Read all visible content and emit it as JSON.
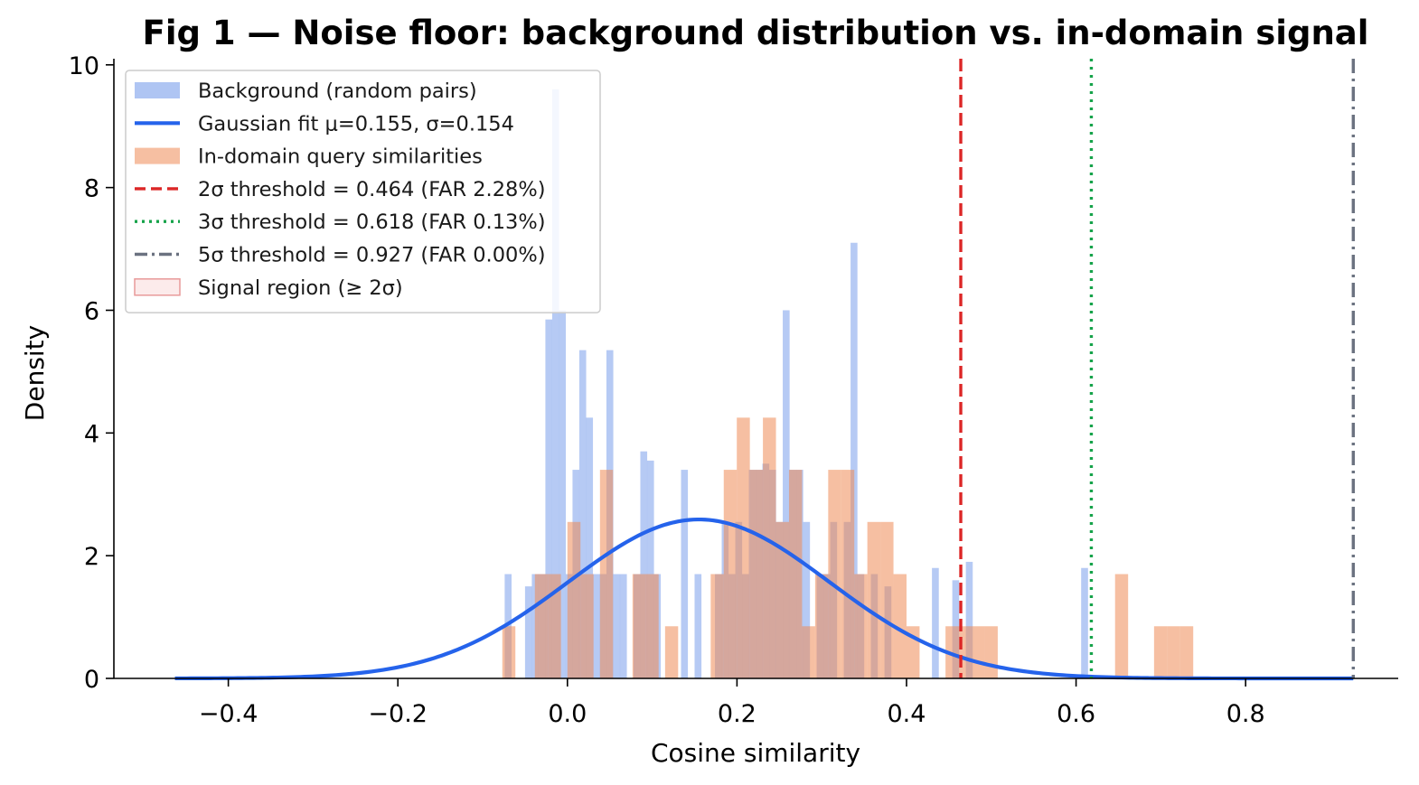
{
  "colors": {
    "background_hist": "#6d95ea",
    "gaussian": "#2563eb",
    "in_domain_hist": "#ee8a55",
    "threshold_2s": "#dc2626",
    "threshold_3s": "#16a34a",
    "threshold_5s": "#6b7280",
    "signal_region": "#f7c5c5"
  },
  "chart_data": {
    "type": "histogram",
    "title": "Fig 1 — Noise floor: background distribution vs. in-domain signal",
    "xlabel": "Cosine similarity",
    "ylabel": "Density",
    "xlim": [
      -0.535,
      0.98
    ],
    "ylim": [
      0,
      10.1
    ],
    "xticks": [
      -0.4,
      -0.2,
      0.0,
      0.2,
      0.4,
      0.6,
      0.8
    ],
    "xtick_labels": [
      "−0.4",
      "−0.2",
      "0.0",
      "0.2",
      "0.4",
      "0.6",
      "0.8"
    ],
    "yticks": [
      0,
      2,
      4,
      6,
      8,
      10
    ],
    "ytick_labels": [
      "0",
      "2",
      "4",
      "6",
      "8",
      "10"
    ],
    "grid": false,
    "legend_position": "top-left",
    "legend": [
      {
        "label": "Background (random pairs)",
        "kind": "patch",
        "color_key": "background_hist"
      },
      {
        "label": "Gaussian fit  μ=0.155, σ=0.154",
        "kind": "line",
        "color_key": "gaussian"
      },
      {
        "label": "In-domain query similarities",
        "kind": "patch",
        "color_key": "in_domain_hist"
      },
      {
        "label": "2σ threshold = 0.464  (FAR 2.28%)",
        "kind": "dashed",
        "color_key": "threshold_2s"
      },
      {
        "label": "3σ threshold = 0.618  (FAR 0.13%)",
        "kind": "dotted",
        "color_key": "threshold_3s"
      },
      {
        "label": "5σ threshold = 0.927  (FAR 0.00%)",
        "kind": "dashdot",
        "color_key": "threshold_5s"
      },
      {
        "label": "Signal region (≥ 2σ)",
        "kind": "patch-outline",
        "color_key": "signal_region"
      }
    ],
    "gaussian_fit": {
      "mu": 0.155,
      "sigma": 0.154,
      "x_range": [
        -0.463,
        0.927
      ]
    },
    "thresholds": [
      {
        "name": "2σ threshold",
        "x": 0.464,
        "style": "dashed",
        "color_key": "threshold_2s"
      },
      {
        "name": "3σ threshold",
        "x": 0.618,
        "style": "dotted",
        "color_key": "threshold_3s"
      },
      {
        "name": "5σ threshold",
        "x": 0.927,
        "style": "dashdot",
        "color_key": "threshold_5s"
      }
    ],
    "series": [
      {
        "name": "Background (random pairs)",
        "bin_width": 0.0081,
        "bins": [
          {
            "x": -0.074,
            "h": 1.7
          },
          {
            "x": -0.05,
            "h": 1.5
          },
          {
            "x": -0.042,
            "h": 1.7
          },
          {
            "x": -0.034,
            "h": 1.7
          },
          {
            "x": -0.026,
            "h": 5.85
          },
          {
            "x": -0.018,
            "h": 9.6
          },
          {
            "x": -0.01,
            "h": 6.0
          },
          {
            "x": -0.002,
            "h": 1.7
          },
          {
            "x": 0.006,
            "h": 3.4
          },
          {
            "x": 0.014,
            "h": 5.35
          },
          {
            "x": 0.022,
            "h": 4.25
          },
          {
            "x": 0.03,
            "h": 1.7
          },
          {
            "x": 0.038,
            "h": 1.7
          },
          {
            "x": 0.046,
            "h": 5.35
          },
          {
            "x": 0.054,
            "h": 1.7
          },
          {
            "x": 0.062,
            "h": 1.7
          },
          {
            "x": 0.078,
            "h": 1.7
          },
          {
            "x": 0.086,
            "h": 3.7
          },
          {
            "x": 0.094,
            "h": 3.55
          },
          {
            "x": 0.102,
            "h": 1.7
          },
          {
            "x": 0.134,
            "h": 3.4
          },
          {
            "x": 0.15,
            "h": 1.7
          },
          {
            "x": 0.174,
            "h": 1.7
          },
          {
            "x": 0.182,
            "h": 2.55
          },
          {
            "x": 0.19,
            "h": 1.7
          },
          {
            "x": 0.198,
            "h": 2.55
          },
          {
            "x": 0.206,
            "h": 1.7
          },
          {
            "x": 0.214,
            "h": 3.4
          },
          {
            "x": 0.222,
            "h": 3.4
          },
          {
            "x": 0.23,
            "h": 3.5
          },
          {
            "x": 0.238,
            "h": 3.4
          },
          {
            "x": 0.246,
            "h": 2.55
          },
          {
            "x": 0.254,
            "h": 6.0
          },
          {
            "x": 0.262,
            "h": 3.4
          },
          {
            "x": 0.27,
            "h": 3.4
          },
          {
            "x": 0.278,
            "h": 2.55
          },
          {
            "x": 0.294,
            "h": 1.7
          },
          {
            "x": 0.302,
            "h": 1.7
          },
          {
            "x": 0.31,
            "h": 2.55
          },
          {
            "x": 0.326,
            "h": 2.55
          },
          {
            "x": 0.334,
            "h": 7.1
          },
          {
            "x": 0.342,
            "h": 1.7
          },
          {
            "x": 0.358,
            "h": 1.7
          },
          {
            "x": 0.374,
            "h": 1.5
          },
          {
            "x": 0.43,
            "h": 1.8
          },
          {
            "x": 0.454,
            "h": 1.6
          },
          {
            "x": 0.47,
            "h": 1.9
          },
          {
            "x": 0.606,
            "h": 1.8
          }
        ]
      },
      {
        "name": "In-domain query similarities",
        "bin_width": 0.0154,
        "bins": [
          {
            "x": -0.0768,
            "h": 0.85
          },
          {
            "x": -0.0384,
            "h": 1.7
          },
          {
            "x": -0.023,
            "h": 1.7
          },
          {
            "x": 0.0,
            "h": 2.55
          },
          {
            "x": 0.0154,
            "h": 1.7
          },
          {
            "x": 0.0384,
            "h": 3.4
          },
          {
            "x": 0.0768,
            "h": 1.7
          },
          {
            "x": 0.0922,
            "h": 1.7
          },
          {
            "x": 0.1152,
            "h": 0.85
          },
          {
            "x": 0.169,
            "h": 1.7
          },
          {
            "x": 0.1844,
            "h": 3.4
          },
          {
            "x": 0.1998,
            "h": 4.25
          },
          {
            "x": 0.2152,
            "h": 3.4
          },
          {
            "x": 0.2306,
            "h": 4.25
          },
          {
            "x": 0.246,
            "h": 2.55
          },
          {
            "x": 0.2614,
            "h": 3.4
          },
          {
            "x": 0.2768,
            "h": 0.85
          },
          {
            "x": 0.2922,
            "h": 1.7
          },
          {
            "x": 0.3076,
            "h": 3.4
          },
          {
            "x": 0.323,
            "h": 3.4
          },
          {
            "x": 0.3384,
            "h": 1.7
          },
          {
            "x": 0.3538,
            "h": 2.55
          },
          {
            "x": 0.3692,
            "h": 2.55
          },
          {
            "x": 0.3846,
            "h": 1.7
          },
          {
            "x": 0.4,
            "h": 0.85
          },
          {
            "x": 0.446,
            "h": 0.85
          },
          {
            "x": 0.4614,
            "h": 0.85
          },
          {
            "x": 0.4768,
            "h": 0.85
          },
          {
            "x": 0.4922,
            "h": 0.85
          },
          {
            "x": 0.646,
            "h": 1.7
          },
          {
            "x": 0.692,
            "h": 0.85
          },
          {
            "x": 0.7074,
            "h": 0.85
          },
          {
            "x": 0.7228,
            "h": 0.85
          }
        ]
      }
    ]
  }
}
